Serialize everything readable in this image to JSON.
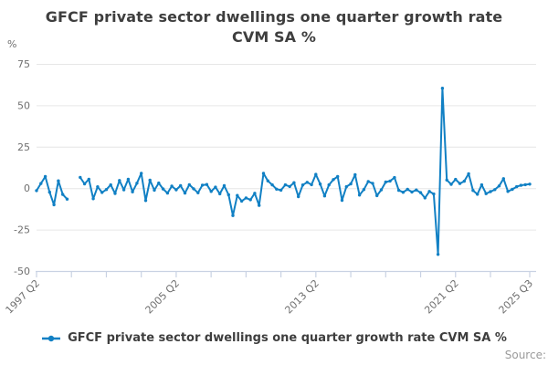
{
  "source_label": "Source:",
  "chart_data": {
    "type": "line",
    "title": "GFCF private sector dwellings one quarter growth rate CVM SA %",
    "y_axis_unit": "%",
    "ylim": [
      -50,
      75
    ],
    "yticks": [
      75,
      50,
      25,
      0,
      -25,
      -50
    ],
    "grid": "horizontal",
    "legend_position": "bottom",
    "x_frequency": "quarterly",
    "x_range": {
      "start": "1997 Q2",
      "end": "2025 Q3",
      "points": 114
    },
    "x_tick_indices": [
      0,
      8,
      16,
      24,
      32,
      40,
      48,
      56,
      64,
      72,
      80,
      88,
      96,
      104,
      113
    ],
    "x_tick_labels": [
      {
        "index": 0,
        "label": "1997 Q2"
      },
      {
        "index": 32,
        "label": "2005 Q2"
      },
      {
        "index": 64,
        "label": "2013 Q2"
      },
      {
        "index": 96,
        "label": "2021 Q2"
      },
      {
        "index": 113,
        "label": "2025 Q3"
      }
    ],
    "colors": {
      "line": "#1180c4",
      "grid": "#e6e6e6",
      "axis": "#c9d2e3",
      "tick_text": "#6f6f6f",
      "title_text": "#3e3e3e",
      "source_text": "#9a9a9a"
    },
    "series": [
      {
        "name": "GFCF private sector dwellings one quarter growth rate CVM SA %",
        "color": "#1180c4",
        "values": [
          -1.5,
          2.8,
          7.0,
          -2.4,
          -10.0,
          4.4,
          -3.8,
          -6.6,
          null,
          null,
          6.5,
          2.6,
          5.4,
          -6.4,
          0.8,
          -2.6,
          -0.8,
          2.0,
          -3.2,
          4.6,
          -1.0,
          5.4,
          -2.2,
          3.0,
          9.0,
          -7.5,
          4.8,
          -1.2,
          3.1,
          -0.5,
          -3.0,
          1.2,
          -1.0,
          1.5,
          -3.0,
          2.1,
          -0.4,
          -2.8,
          1.8,
          2.2,
          -2.0,
          0.6,
          -3.4,
          1.5,
          -4.0,
          -16.5,
          -4.4,
          -7.8,
          -5.9,
          -7.0,
          -3.1,
          -10.4,
          8.9,
          4.4,
          2.0,
          -0.6,
          -1.2,
          2.0,
          1.0,
          3.3,
          -5.1,
          1.9,
          3.5,
          2.1,
          8.3,
          2.5,
          -4.7,
          2.0,
          5.2,
          7.0,
          -7.3,
          0.9,
          2.6,
          8.1,
          -4.2,
          -0.8,
          4.0,
          2.9,
          -4.5,
          -1.0,
          3.7,
          4.3,
          6.4,
          -1.3,
          -2.5,
          -0.7,
          -2.3,
          -1.1,
          -2.7,
          -5.9,
          -2.0,
          -3.5,
          -40.0,
          60.3,
          4.9,
          2.3,
          5.3,
          2.8,
          4.2,
          8.7,
          -1.4,
          -3.7,
          2.0,
          -3.3,
          -2.1,
          -0.9,
          1.3,
          5.7,
          -2.0,
          -0.7,
          0.9,
          1.7,
          2.1,
          2.4
        ]
      }
    ]
  }
}
